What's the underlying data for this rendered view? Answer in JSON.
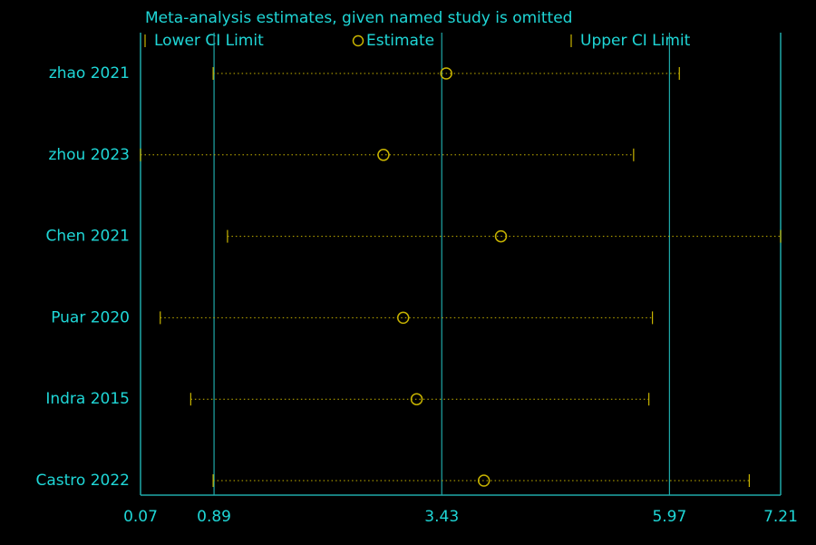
{
  "chart_data": {
    "type": "interval",
    "title": "Meta-analysis estimates, given named study is omitted",
    "categories": [
      "zhao 2021",
      "zhou 2023",
      "Chen 2021",
      "Puar 2020",
      "Indra 2015",
      "Castro 2022"
    ],
    "series": [
      {
        "name": "Lower CI Limit",
        "color": "#c8b400",
        "values": [
          0.88,
          0.07,
          1.04,
          0.29,
          0.63,
          0.88
        ]
      },
      {
        "name": "Estimate",
        "color": "#c8b400",
        "values": [
          3.48,
          2.78,
          4.09,
          3.0,
          3.15,
          3.9
        ]
      },
      {
        "name": "Upper CI Limit",
        "color": "#c8b400",
        "values": [
          6.08,
          5.57,
          7.21,
          5.78,
          5.74,
          6.86
        ]
      }
    ],
    "xlim": [
      0.07,
      7.21
    ],
    "xticks": [
      0.07,
      0.89,
      3.43,
      5.97,
      7.21
    ],
    "axis_color": "#1fa8a8",
    "grid": true
  }
}
